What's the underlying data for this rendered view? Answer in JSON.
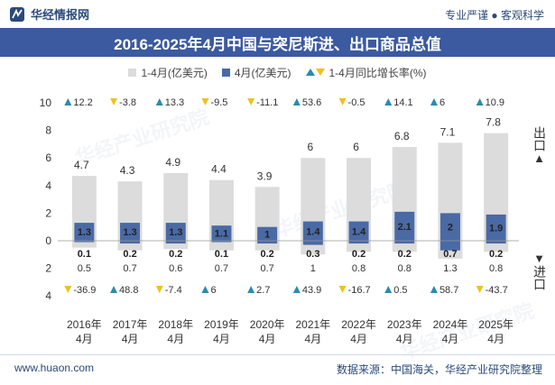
{
  "header": {
    "brand": "华经情报网",
    "slogan": "专业严谨 ● 客观科学",
    "title": "2016-2025年4月中国与突尼斯进、出口商品总值"
  },
  "legend": {
    "cumulative": "1-4月(亿美元)",
    "month": "4月(亿美元)",
    "growth": "1-4月同比增长率(%)"
  },
  "side": {
    "export": "出口",
    "import": "进口"
  },
  "footer": {
    "website": "www.huaon.com",
    "source": "数据来源：中国海关，华经产业研究院整理"
  },
  "watermark": "华经产业研究院",
  "colors": {
    "cumulative_bar": "#dcdcdc",
    "month_bar": "#4a6aa5",
    "title_bg": "#3b5aa0",
    "growth_up": "#2a8bb0",
    "growth_down": "#f0c020"
  },
  "chart_data": {
    "type": "bar",
    "categories": [
      "2016年4月",
      "2017年4月",
      "2018年4月",
      "2019年4月",
      "2020年4月",
      "2021年4月",
      "2022年4月",
      "2023年4月",
      "2024年4月",
      "2025年4月"
    ],
    "upper_axis_ticks": [
      0,
      2,
      4,
      6,
      8,
      10
    ],
    "lower_axis_ticks": [
      2,
      4
    ],
    "export_growth_pct": [
      12.2,
      -3.8,
      13.3,
      -9.5,
      -11.1,
      53.6,
      -0.5,
      14.1,
      6,
      10.9
    ],
    "import_growth_pct": [
      -36.9,
      48.8,
      -7.4,
      6,
      2.7,
      43.9,
      -16.7,
      0.5,
      58.7,
      -43.7
    ],
    "series": [
      {
        "name": "出口 1-4月(亿美元)",
        "values": [
          4.7,
          4.3,
          4.9,
          4.4,
          3.9,
          6,
          6,
          6.8,
          7.1,
          7.8
        ]
      },
      {
        "name": "出口 4月(亿美元)",
        "values": [
          1.3,
          1.3,
          1.3,
          1.1,
          1,
          1.4,
          1.4,
          2.1,
          2,
          1.9
        ]
      },
      {
        "name": "进口 1-4月(亿美元)",
        "values": [
          0.5,
          0.7,
          0.6,
          0.7,
          0.7,
          1,
          0.8,
          0.8,
          1.3,
          0.8
        ]
      },
      {
        "name": "进口 4月(亿美元)",
        "values": [
          0.1,
          0.2,
          0.2,
          0.1,
          0.2,
          0.3,
          0.2,
          0.2,
          0.7,
          0.2
        ]
      }
    ]
  }
}
